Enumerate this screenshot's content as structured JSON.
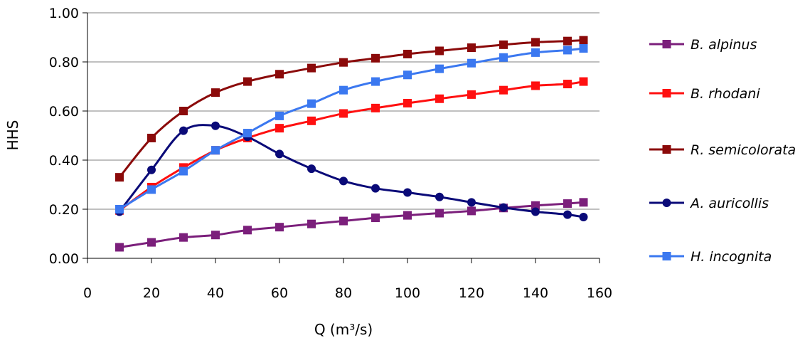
{
  "chart_data": {
    "type": "line",
    "xlabel": "Q (m³/s)",
    "ylabel": "HHS",
    "xlim": [
      0,
      160
    ],
    "ylim": [
      0,
      1
    ],
    "x_ticks": [
      "0",
      "20",
      "40",
      "60",
      "80",
      "100",
      "120",
      "140",
      "160"
    ],
    "y_ticks": [
      "0.00",
      "0.20",
      "0.40",
      "0.60",
      "0.80",
      "1.00"
    ],
    "grid": "horizontal",
    "legend_position": "right",
    "x": [
      10,
      20,
      30,
      40,
      50,
      60,
      70,
      80,
      90,
      100,
      110,
      120,
      130,
      140,
      150,
      155
    ],
    "series": [
      {
        "name": "B. alpinus",
        "color": "#7b1f7b",
        "marker": "square",
        "values": [
          0.045,
          0.065,
          0.085,
          0.095,
          0.115,
          0.127,
          0.14,
          0.152,
          0.165,
          0.175,
          0.184,
          0.193,
          0.205,
          0.215,
          0.223,
          0.228
        ]
      },
      {
        "name": "B. rhodani",
        "color": "#ff1010",
        "marker": "square",
        "values": [
          0.195,
          0.29,
          0.37,
          0.44,
          0.49,
          0.53,
          0.56,
          0.59,
          0.612,
          0.632,
          0.65,
          0.667,
          0.685,
          0.703,
          0.71,
          0.72
        ]
      },
      {
        "name": "R. semicolorata",
        "color": "#8b0a0a",
        "marker": "square",
        "values": [
          0.33,
          0.49,
          0.6,
          0.675,
          0.72,
          0.75,
          0.775,
          0.798,
          0.815,
          0.832,
          0.845,
          0.858,
          0.87,
          0.88,
          0.885,
          0.888
        ]
      },
      {
        "name": "A. auricollis",
        "color": "#0a0a78",
        "marker": "circle",
        "values": [
          0.19,
          0.36,
          0.52,
          0.54,
          0.495,
          0.425,
          0.365,
          0.315,
          0.285,
          0.268,
          0.25,
          0.228,
          0.207,
          0.19,
          0.178,
          0.168
        ]
      },
      {
        "name": "H. incognita",
        "color": "#3b78f0",
        "marker": "square",
        "values": [
          0.2,
          0.28,
          0.355,
          0.44,
          0.51,
          0.58,
          0.63,
          0.685,
          0.72,
          0.747,
          0.772,
          0.795,
          0.818,
          0.838,
          0.848,
          0.855
        ]
      }
    ]
  }
}
